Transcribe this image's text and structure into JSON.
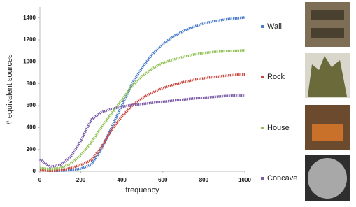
{
  "chart_data": {
    "type": "line",
    "x_label": "frequency",
    "y_label": "# equivalent sources",
    "x": [
      0,
      50,
      100,
      150,
      200,
      250,
      300,
      350,
      400,
      450,
      500,
      550,
      600,
      650,
      700,
      750,
      800,
      850,
      900,
      950,
      1000
    ],
    "series": [
      {
        "name": "Wall",
        "color": "#4a7cc9",
        "values": [
          10,
          5,
          5,
          10,
          25,
          60,
          200,
          400,
          600,
          800,
          950,
          1070,
          1160,
          1230,
          1280,
          1320,
          1350,
          1370,
          1385,
          1395,
          1405
        ]
      },
      {
        "name": "Rock",
        "color": "#c9463d",
        "values": [
          10,
          5,
          10,
          30,
          60,
          100,
          220,
          380,
          500,
          600,
          670,
          720,
          760,
          790,
          815,
          835,
          850,
          862,
          872,
          880,
          885
        ]
      },
      {
        "name": "House",
        "color": "#92c255",
        "values": [
          30,
          20,
          30,
          70,
          150,
          260,
          400,
          530,
          650,
          780,
          870,
          940,
          990,
          1020,
          1045,
          1065,
          1080,
          1090,
          1095,
          1100,
          1105
        ]
      },
      {
        "name": "Concave",
        "color": "#7d5caa",
        "values": [
          110,
          40,
          60,
          130,
          280,
          470,
          540,
          570,
          590,
          605,
          615,
          625,
          635,
          645,
          655,
          665,
          672,
          680,
          687,
          692,
          695
        ]
      }
    ],
    "xlim": [
      0,
      1000
    ],
    "xticks": [
      0,
      200,
      400,
      600,
      800,
      1000
    ],
    "ylim": [
      0,
      1500
    ],
    "yticks": [
      0,
      200,
      400,
      600,
      800,
      1000,
      1200,
      1400
    ],
    "grid": false
  }
}
